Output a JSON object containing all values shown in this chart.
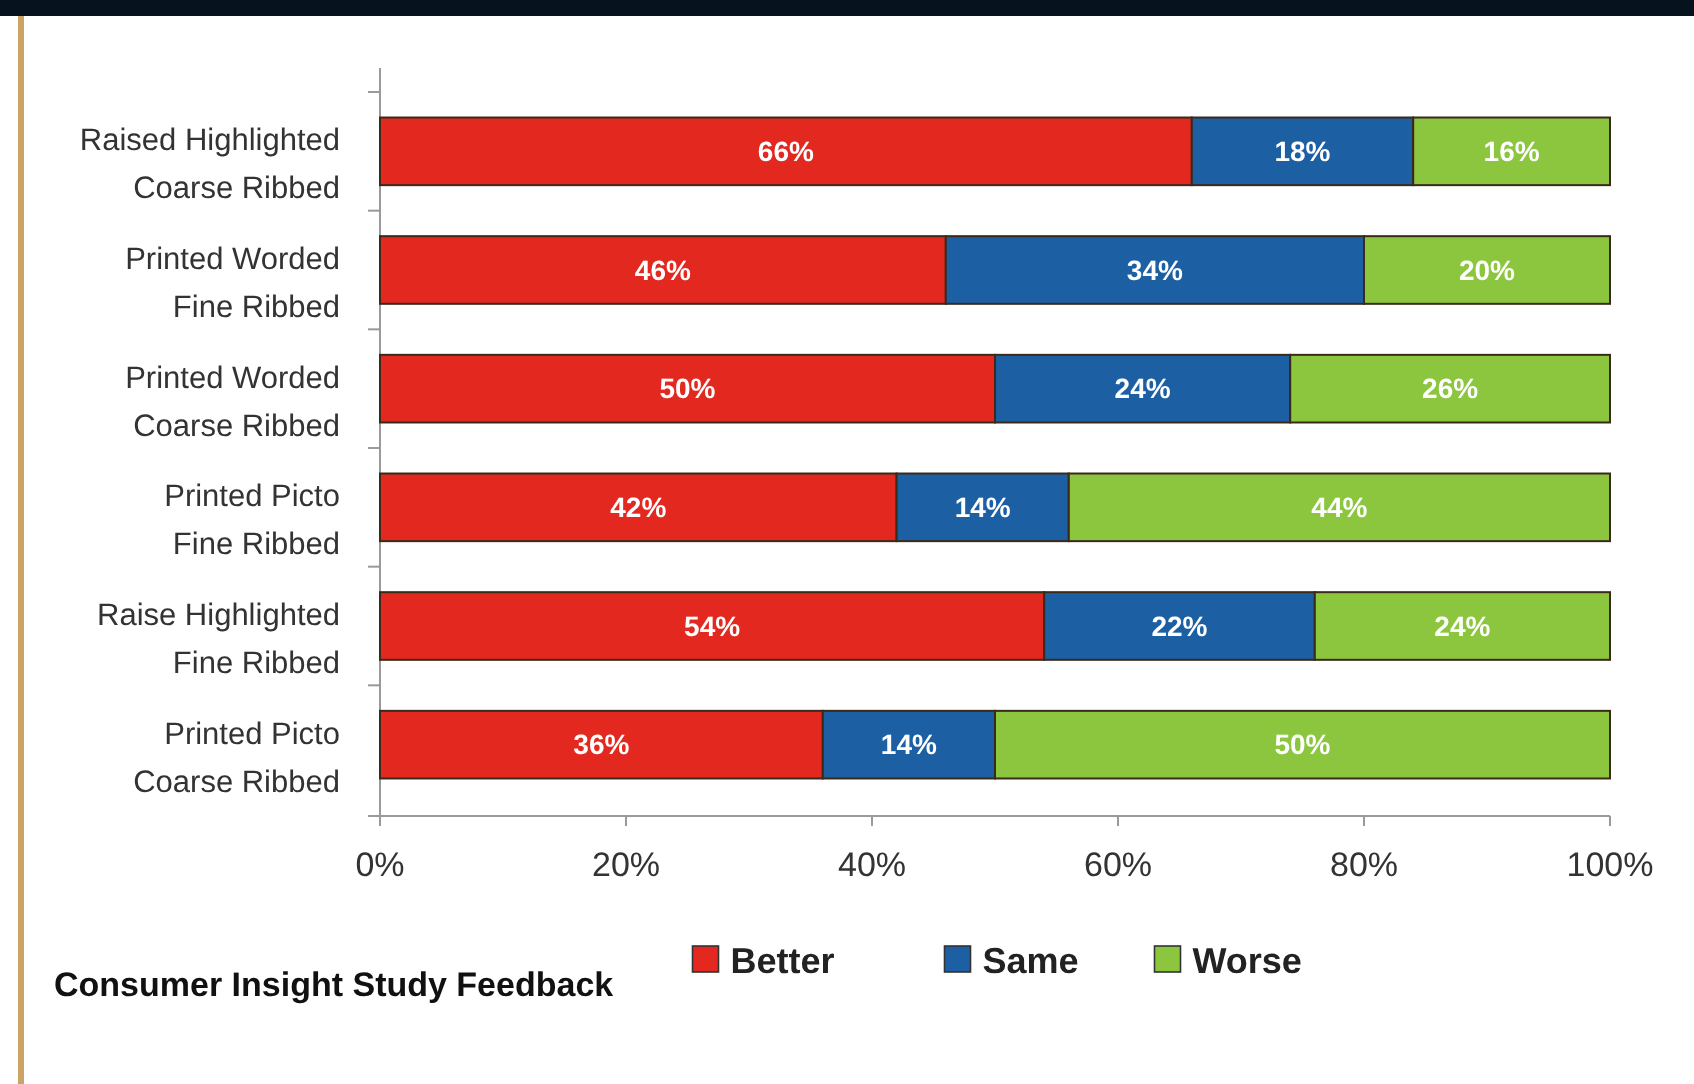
{
  "chart_data": {
    "type": "bar",
    "orientation": "horizontal",
    "stacked": true,
    "categories": [
      "Raised Highlighted\nCoarse Ribbed",
      "Printed Worded\nFine Ribbed",
      "Printed Worded\nCoarse Ribbed",
      "Printed Picto\nFine Ribbed",
      "Raise Highlighted\nFine Ribbed",
      "Printed Picto\nCoarse Ribbed"
    ],
    "series": [
      {
        "name": "Better",
        "color": "#e3281f",
        "values": [
          66,
          46,
          50,
          42,
          54,
          36
        ],
        "value_labels": [
          "66%",
          "46%",
          "50%",
          "42%",
          "54%",
          "36%"
        ]
      },
      {
        "name": "Same",
        "color": "#1d5fa3",
        "values": [
          18,
          34,
          24,
          14,
          22,
          14
        ],
        "value_labels": [
          "18%",
          "34%",
          "24%",
          "14%",
          "22%",
          "14%"
        ]
      },
      {
        "name": "Worse",
        "color": "#8cc63e",
        "values": [
          16,
          20,
          26,
          44,
          24,
          50
        ],
        "value_labels": [
          "16%",
          "20%",
          "26%",
          "44%",
          "24%",
          "50%"
        ]
      }
    ],
    "xlim": [
      0,
      100
    ],
    "xticks": [
      {
        "value": 0,
        "label": "0%"
      },
      {
        "value": 20,
        "label": "20%"
      },
      {
        "value": 40,
        "label": "40%"
      },
      {
        "value": 60,
        "label": "60%"
      },
      {
        "value": 80,
        "label": "80%"
      },
      {
        "value": 100,
        "label": "100%"
      }
    ],
    "grid": false,
    "legend": "bottom",
    "annotations": [
      "Consumer Insight Study Feedback"
    ]
  }
}
